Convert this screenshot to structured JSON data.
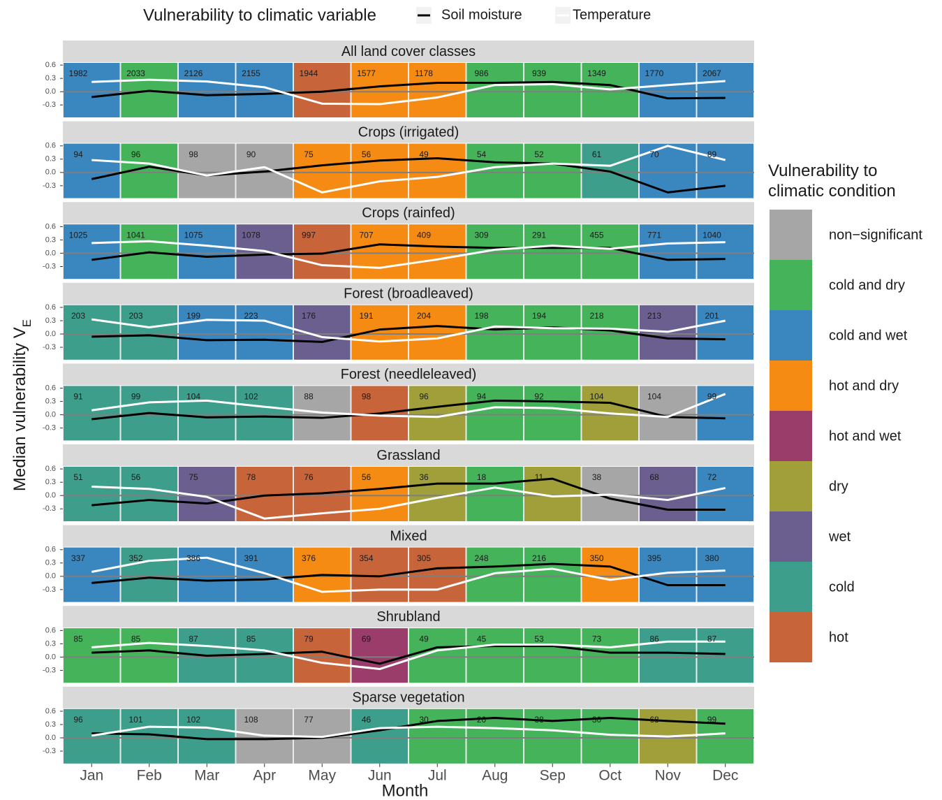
{
  "chart_data": {
    "type": "line",
    "legend_title": "Vulnerability to climatic variable",
    "x_label": "Month",
    "y_label": "Median vulnerability V",
    "y_label_subscript": "E",
    "categories": [
      "Jan",
      "Feb",
      "Mar",
      "Apr",
      "May",
      "Jun",
      "Jul",
      "Aug",
      "Sep",
      "Oct",
      "Nov",
      "Dec"
    ],
    "ylim": [
      -0.58,
      0.65
    ],
    "yticks": [
      -0.3,
      {
        "value": 0,
        "label": "0.0"
      },
      0.3,
      0.6
    ],
    "series": [
      {
        "name": "Soil moisture",
        "color": "#000000"
      },
      {
        "name": "Temperature",
        "color": "#ffffff"
      }
    ],
    "fill_legend": {
      "title": "Vulnerability to climatic condition",
      "classes": [
        {
          "name": "non−significant",
          "color": "#a6a6a6"
        },
        {
          "name": "cold and dry",
          "color": "#45b35a"
        },
        {
          "name": "cold and wet",
          "color": "#3a87bf"
        },
        {
          "name": "hot and dry",
          "color": "#f58b13"
        },
        {
          "name": "hot and wet",
          "color": "#9b3d6b"
        },
        {
          "name": "dry",
          "color": "#a09f3a"
        },
        {
          "name": "wet",
          "color": "#6a5f8e"
        },
        {
          "name": "cold",
          "color": "#3e9e8c"
        },
        {
          "name": "hot",
          "color": "#c8643a"
        }
      ]
    },
    "panels": [
      {
        "title": "All land cover classes",
        "conditions": [
          2,
          1,
          2,
          2,
          8,
          3,
          3,
          1,
          1,
          1,
          2,
          2
        ],
        "counts": [
          1982,
          2033,
          2126,
          2155,
          1944,
          1577,
          1178,
          986,
          939,
          1349,
          1770,
          2067
        ],
        "values": [
          [
            -0.12,
            0.02,
            -0.08,
            -0.05,
            0.0,
            0.12,
            0.2,
            0.2,
            0.22,
            0.15,
            -0.15,
            -0.14
          ],
          [
            0.22,
            0.27,
            0.23,
            0.1,
            -0.27,
            -0.28,
            -0.13,
            0.15,
            0.17,
            0.05,
            0.15,
            0.24
          ]
        ]
      },
      {
        "title": "Crops (irrigated)",
        "conditions": [
          2,
          1,
          0,
          0,
          3,
          3,
          3,
          1,
          1,
          7,
          2,
          2
        ],
        "counts": [
          94,
          96,
          98,
          90,
          75,
          56,
          49,
          54,
          52,
          61,
          70,
          89
        ],
        "values": [
          [
            -0.15,
            0.13,
            -0.07,
            0.02,
            0.16,
            0.27,
            0.32,
            0.23,
            0.2,
            0.02,
            -0.45,
            -0.3
          ],
          [
            0.28,
            0.2,
            -0.07,
            0.12,
            -0.45,
            -0.2,
            -0.1,
            0.12,
            0.2,
            0.15,
            0.6,
            0.28
          ]
        ]
      },
      {
        "title": "Crops (rainfed)",
        "conditions": [
          2,
          1,
          2,
          6,
          8,
          3,
          3,
          1,
          1,
          1,
          2,
          2
        ],
        "counts": [
          1025,
          1041,
          1075,
          1078,
          997,
          707,
          409,
          309,
          291,
          455,
          771,
          1040
        ],
        "values": [
          [
            -0.15,
            0.02,
            -0.08,
            -0.03,
            -0.01,
            0.2,
            0.15,
            0.12,
            0.12,
            0.12,
            -0.15,
            -0.13
          ],
          [
            0.23,
            0.27,
            0.17,
            0.05,
            -0.27,
            -0.33,
            -0.14,
            0.08,
            0.17,
            0.1,
            0.22,
            0.25
          ]
        ]
      },
      {
        "title": "Forest (broadleaved)",
        "conditions": [
          7,
          7,
          2,
          2,
          6,
          3,
          3,
          1,
          1,
          1,
          6,
          2
        ],
        "counts": [
          203,
          203,
          199,
          223,
          176,
          191,
          204,
          198,
          194,
          218,
          213,
          201
        ],
        "values": [
          [
            -0.06,
            -0.03,
            -0.14,
            -0.13,
            -0.18,
            0.1,
            0.18,
            0.1,
            0.15,
            0.08,
            -0.1,
            -0.12
          ],
          [
            0.33,
            0.15,
            0.32,
            0.3,
            -0.07,
            -0.17,
            -0.1,
            0.17,
            0.13,
            0.12,
            0.05,
            0.3
          ]
        ]
      },
      {
        "title": "Forest (needleleaved)",
        "conditions": [
          7,
          7,
          7,
          7,
          0,
          8,
          5,
          1,
          1,
          5,
          0,
          2
        ],
        "counts": [
          91,
          99,
          104,
          102,
          88,
          98,
          96,
          94,
          92,
          104,
          104,
          99
        ],
        "values": [
          [
            -0.1,
            0.04,
            -0.06,
            -0.04,
            -0.07,
            0.03,
            0.18,
            0.32,
            0.3,
            0.27,
            -0.05,
            -0.08
          ],
          [
            0.1,
            0.28,
            0.32,
            0.18,
            0.05,
            -0.02,
            -0.05,
            0.17,
            0.15,
            0.03,
            -0.05,
            0.47
          ]
        ]
      },
      {
        "title": "Grassland",
        "conditions": [
          7,
          7,
          6,
          8,
          8,
          3,
          5,
          1,
          5,
          0,
          6,
          2
        ],
        "counts": [
          51,
          56,
          75,
          78,
          76,
          56,
          36,
          18,
          11,
          38,
          68,
          72
        ],
        "values": [
          [
            -0.22,
            -0.1,
            -0.18,
            0.0,
            0.05,
            0.15,
            0.27,
            0.27,
            0.38,
            -0.07,
            -0.32,
            -0.32
          ],
          [
            0.2,
            0.15,
            -0.03,
            -0.52,
            -0.4,
            -0.3,
            -0.05,
            0.18,
            -0.02,
            0.02,
            -0.1,
            0.17
          ]
        ]
      },
      {
        "title": "Mixed",
        "conditions": [
          2,
          7,
          2,
          2,
          3,
          8,
          8,
          1,
          1,
          3,
          2,
          2
        ],
        "counts": [
          337,
          352,
          386,
          391,
          376,
          354,
          305,
          248,
          216,
          350,
          395,
          380
        ],
        "values": [
          [
            -0.15,
            -0.03,
            -0.1,
            -0.07,
            0.03,
            0.0,
            0.18,
            0.22,
            0.28,
            0.22,
            -0.2,
            -0.2
          ],
          [
            0.1,
            0.35,
            0.42,
            0.07,
            -0.35,
            -0.3,
            -0.3,
            0.07,
            0.17,
            -0.08,
            0.08,
            0.13
          ]
        ]
      },
      {
        "title": "Shrubland",
        "conditions": [
          1,
          1,
          7,
          7,
          8,
          4,
          1,
          1,
          1,
          1,
          7,
          7
        ],
        "counts": [
          85,
          85,
          87,
          85,
          79,
          69,
          49,
          45,
          53,
          73,
          86,
          87
        ],
        "values": [
          [
            0.1,
            0.15,
            0.03,
            0.07,
            0.12,
            -0.15,
            0.22,
            0.25,
            0.25,
            0.1,
            0.1,
            0.07
          ],
          [
            0.22,
            0.32,
            0.25,
            0.15,
            -0.13,
            -0.27,
            0.15,
            0.28,
            0.28,
            0.22,
            0.35,
            0.35
          ]
        ]
      },
      {
        "title": "Sparse vegetation",
        "conditions": [
          7,
          7,
          7,
          0,
          0,
          7,
          1,
          1,
          1,
          1,
          5,
          1
        ],
        "counts": [
          96,
          101,
          102,
          108,
          77,
          46,
          30,
          20,
          38,
          30,
          68,
          99
        ],
        "values": [
          [
            0.1,
            0.08,
            -0.03,
            -0.03,
            0.0,
            0.17,
            0.38,
            0.45,
            0.38,
            0.45,
            0.38,
            0.32
          ],
          [
            0.05,
            0.25,
            0.23,
            0.05,
            0.02,
            0.22,
            0.25,
            0.22,
            0.17,
            0.07,
            0.03,
            0.1
          ]
        ]
      }
    ]
  }
}
